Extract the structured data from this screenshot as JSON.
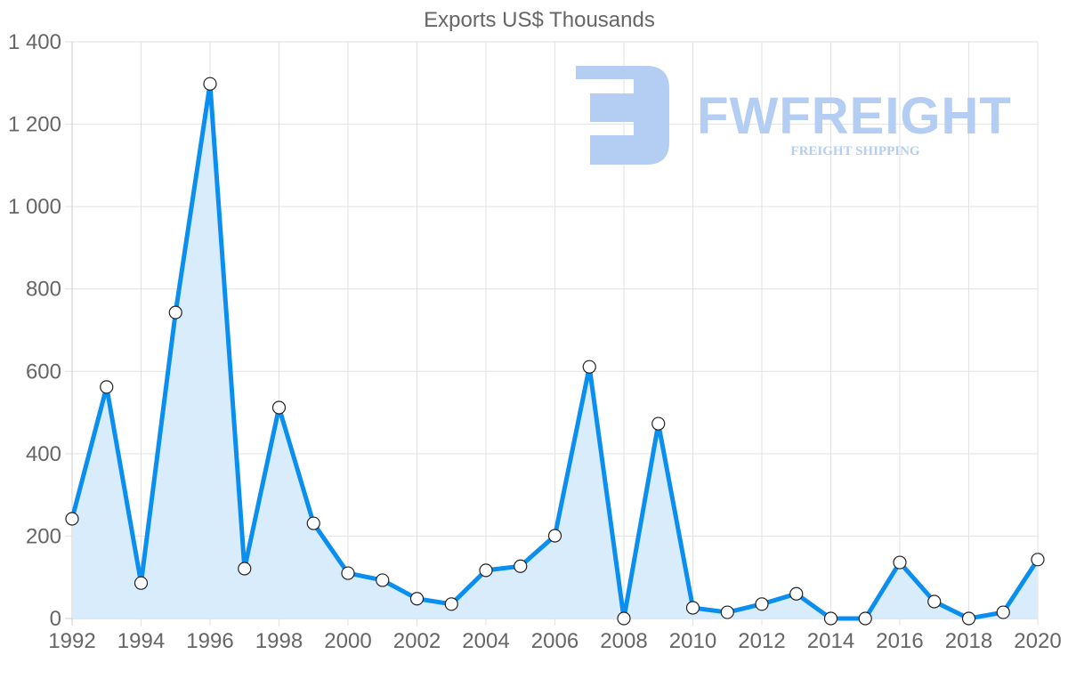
{
  "chart_data": {
    "type": "line",
    "title": "Exports US$ Thousands",
    "xlabel": "",
    "ylabel": "",
    "x": [
      1992,
      1993,
      1994,
      1995,
      1996,
      1997,
      1998,
      1999,
      2000,
      2001,
      2002,
      2003,
      2004,
      2005,
      2006,
      2007,
      2008,
      2009,
      2010,
      2011,
      2012,
      2013,
      2014,
      2015,
      2016,
      2017,
      2018,
      2019,
      2020
    ],
    "series": [
      {
        "name": "Exports US$ Thousands",
        "values": [
          242,
          562,
          86,
          743,
          1298,
          121,
          512,
          231,
          110,
          93,
          48,
          35,
          117,
          127,
          201,
          611,
          0,
          473,
          26,
          15,
          35,
          60,
          0,
          0,
          136,
          41,
          0,
          15,
          143
        ],
        "color": "#0a8ff0",
        "fill": "#d9ecfc"
      }
    ],
    "xlim": [
      1992,
      2020
    ],
    "ylim": [
      0,
      1400
    ],
    "x_ticks": [
      "1992",
      "1994",
      "1996",
      "1998",
      "2000",
      "2002",
      "2004",
      "2006",
      "2008",
      "2010",
      "2012",
      "2014",
      "2016",
      "2018",
      "2020"
    ],
    "y_ticks": [
      "0",
      "200",
      "400",
      "600",
      "800",
      "1 000",
      "1 200",
      "1 400"
    ],
    "grid": true,
    "legend": "none"
  },
  "watermark": {
    "brand": "FWFREIGHT",
    "tagline": "FREIGHT SHIPPING",
    "color": "#b3cdf3"
  }
}
